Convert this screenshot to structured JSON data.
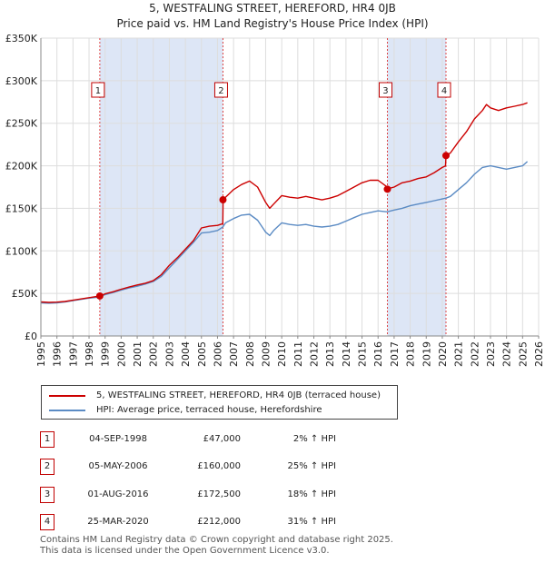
{
  "title_line1": "5, WESTFALING STREET, HEREFORD, HR4 0JB",
  "title_line2": "Price paid vs. HM Land Registry's House Price Index (HPI)",
  "chart_data": {
    "type": "line",
    "title": "5, WESTFALING STREET, HEREFORD, HR4 0JB — Price paid vs. HM Land Registry's House Price Index (HPI)",
    "xlabel": "",
    "ylabel": "",
    "xlim": [
      1995,
      2026
    ],
    "ylim": [
      0,
      350000
    ],
    "x_ticks": [
      "1995",
      "1996",
      "1997",
      "1998",
      "1999",
      "2000",
      "2001",
      "2002",
      "2003",
      "2004",
      "2005",
      "2006",
      "2007",
      "2008",
      "2009",
      "2010",
      "2011",
      "2012",
      "2013",
      "2014",
      "2015",
      "2016",
      "2017",
      "2018",
      "2019",
      "2020",
      "2021",
      "2022",
      "2023",
      "2024",
      "2025",
      "2026"
    ],
    "y_ticks": [
      {
        "value": 0,
        "label": "£0"
      },
      {
        "value": 50000,
        "label": "£50K"
      },
      {
        "value": 100000,
        "label": "£100K"
      },
      {
        "value": 150000,
        "label": "£150K"
      },
      {
        "value": 200000,
        "label": "£200K"
      },
      {
        "value": 250000,
        "label": "£250K"
      },
      {
        "value": 300000,
        "label": "£300K"
      },
      {
        "value": 350000,
        "label": "£350K"
      }
    ],
    "grid": true,
    "series": [
      {
        "name": "5, WESTFALING STREET, HEREFORD, HR4 0JB (terraced house)",
        "color": "#cc0000",
        "x": [
          1995.0,
          1995.5,
          1996.0,
          1996.5,
          1997.0,
          1997.5,
          1998.0,
          1998.5,
          1998.67,
          1999.0,
          1999.5,
          2000.0,
          2000.5,
          2001.0,
          2001.5,
          2002.0,
          2002.5,
          2003.0,
          2003.5,
          2004.0,
          2004.5,
          2005.0,
          2005.5,
          2006.0,
          2006.33,
          2006.35,
          2006.5,
          2007.0,
          2007.5,
          2008.0,
          2008.5,
          2009.0,
          2009.25,
          2009.5,
          2010.0,
          2010.5,
          2011.0,
          2011.5,
          2012.0,
          2012.5,
          2013.0,
          2013.5,
          2014.0,
          2014.5,
          2015.0,
          2015.5,
          2016.0,
          2016.5,
          2016.58,
          2016.6,
          2017.0,
          2017.5,
          2018.0,
          2018.5,
          2019.0,
          2019.5,
          2020.0,
          2020.2,
          2020.23,
          2020.5,
          2021.0,
          2021.5,
          2022.0,
          2022.5,
          2022.75,
          2023.0,
          2023.5,
          2024.0,
          2024.5,
          2025.0,
          2025.3
        ],
        "values": [
          40000,
          39500,
          39800,
          40500,
          42000,
          43500,
          45000,
          46500,
          47000,
          49500,
          52000,
          55000,
          57500,
          60000,
          62000,
          65000,
          72000,
          83000,
          92000,
          102000,
          112000,
          127000,
          129000,
          130000,
          132000,
          160000,
          163000,
          172000,
          178000,
          182000,
          175000,
          157000,
          150000,
          155000,
          165000,
          163000,
          162000,
          164000,
          162000,
          160000,
          162000,
          165000,
          170000,
          175000,
          180000,
          183000,
          183000,
          176000,
          172500,
          173000,
          175000,
          180000,
          182000,
          185000,
          187000,
          192000,
          198000,
          200000,
          212000,
          215000,
          228000,
          240000,
          255000,
          265000,
          272000,
          268000,
          265000,
          268000,
          270000,
          272000,
          274000
        ]
      },
      {
        "name": "HPI: Average price, terraced house, Herefordshire",
        "color": "#5b8bc4",
        "x": [
          1995.0,
          1995.5,
          1996.0,
          1996.5,
          1997.0,
          1997.5,
          1998.0,
          1998.5,
          1998.67,
          1999.0,
          1999.5,
          2000.0,
          2000.5,
          2001.0,
          2001.5,
          2002.0,
          2002.5,
          2003.0,
          2003.5,
          2004.0,
          2004.5,
          2005.0,
          2005.5,
          2006.0,
          2006.33,
          2006.5,
          2007.0,
          2007.5,
          2008.0,
          2008.5,
          2009.0,
          2009.25,
          2009.5,
          2010.0,
          2010.5,
          2011.0,
          2011.5,
          2012.0,
          2012.5,
          2013.0,
          2013.5,
          2014.0,
          2014.5,
          2015.0,
          2015.5,
          2016.0,
          2016.5,
          2016.58,
          2017.0,
          2017.5,
          2018.0,
          2018.5,
          2019.0,
          2019.5,
          2020.0,
          2020.23,
          2020.5,
          2021.0,
          2021.5,
          2022.0,
          2022.5,
          2023.0,
          2023.5,
          2024.0,
          2024.5,
          2025.0,
          2025.3
        ],
        "values": [
          39000,
          38500,
          39000,
          40000,
          41500,
          43000,
          44500,
          45500,
          46000,
          48500,
          51000,
          54000,
          56500,
          58500,
          61000,
          64000,
          70000,
          80000,
          90000,
          100000,
          110000,
          121000,
          122000,
          124000,
          128000,
          133000,
          138000,
          142000,
          143000,
          136000,
          122000,
          118000,
          124000,
          133000,
          131000,
          130000,
          131000,
          129000,
          128000,
          129000,
          131000,
          135000,
          139000,
          143000,
          145000,
          147000,
          146000,
          146000,
          148000,
          150000,
          153000,
          155000,
          157000,
          159000,
          161000,
          162000,
          164000,
          172000,
          180000,
          190000,
          198000,
          200000,
          198000,
          196000,
          198000,
          200000,
          205000
        ]
      }
    ],
    "sales": [
      {
        "label": "1",
        "date": "04-SEP-1998",
        "x": 1998.67,
        "price": 47000,
        "price_text": "£47,000",
        "hpi_text": "2% ↑ HPI"
      },
      {
        "label": "2",
        "date": "05-MAY-2006",
        "x": 2006.34,
        "price": 160000,
        "price_text": "£160,000",
        "hpi_text": "25% ↑ HPI"
      },
      {
        "label": "3",
        "date": "01-AUG-2016",
        "x": 2016.58,
        "price": 172500,
        "price_text": "£172,500",
        "hpi_text": "18% ↑ HPI"
      },
      {
        "label": "4",
        "date": "25-MAR-2020",
        "x": 2020.23,
        "price": 212000,
        "price_text": "£212,000",
        "hpi_text": "31% ↑ HPI"
      }
    ],
    "shaded_ranges": [
      [
        1998.67,
        2006.34
      ],
      [
        2016.58,
        2020.23
      ]
    ],
    "legend_position": "below-chart"
  },
  "legend": {
    "property": "5, WESTFALING STREET, HEREFORD, HR4 0JB (terraced house)",
    "hpi": "HPI: Average price, terraced house, Herefordshire"
  },
  "colors": {
    "property": "#cc0000",
    "hpi": "#5b8bc4",
    "shade": "#dde6f6",
    "grid": "#dddddd"
  },
  "footer": {
    "line1": "Contains HM Land Registry data © Crown copyright and database right 2025.",
    "line2": "This data is licensed under the Open Government Licence v3.0."
  }
}
